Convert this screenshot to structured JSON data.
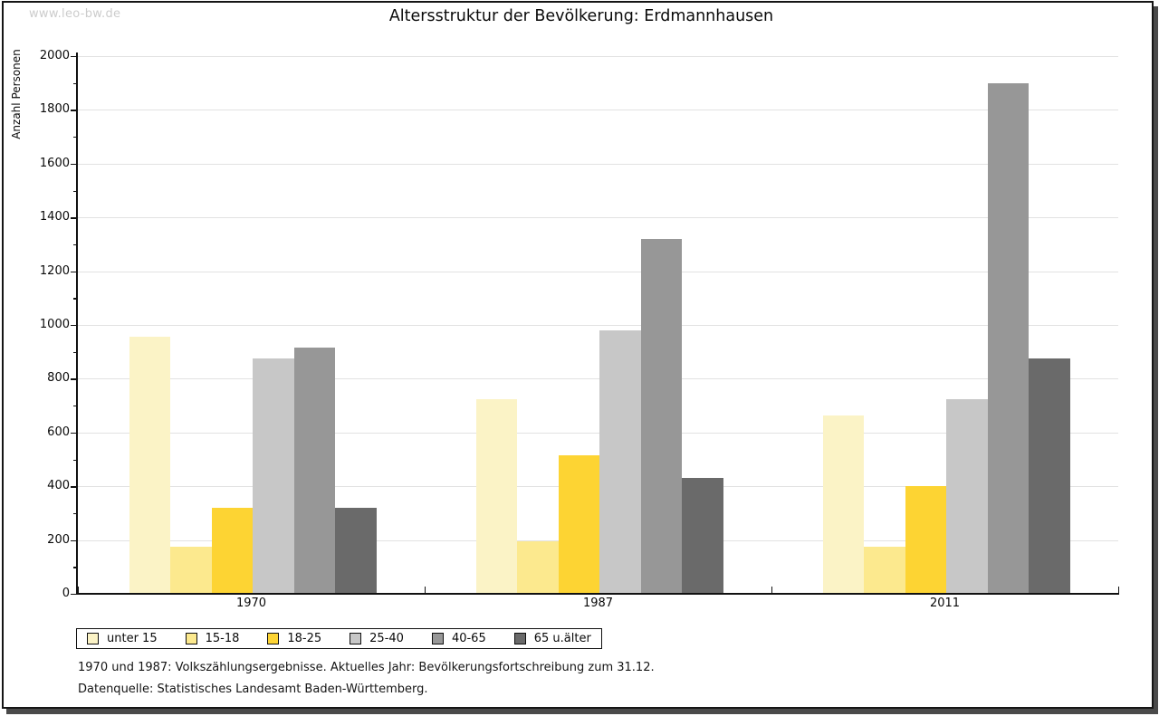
{
  "watermark": "www.leo-bw.de",
  "chart_data": {
    "type": "bar",
    "title": "Altersstruktur der Bevölkerung: Erdmannhausen",
    "ylabel": "Anzahl Personen",
    "xlabel": "",
    "ylim": [
      0,
      2000
    ],
    "ytick_major_step": 200,
    "ytick_minor_step": 100,
    "grid": "horizontal-major",
    "legend_position": "bottom-left",
    "categories": [
      "1970",
      "1987",
      "2011"
    ],
    "series": [
      {
        "name": "unter 15",
        "color": "#FBF3C6",
        "values": [
          955,
          725,
          665
        ]
      },
      {
        "name": "15-18",
        "color": "#FCE98E",
        "values": [
          175,
          195,
          175
        ]
      },
      {
        "name": "18-25",
        "color": "#FDD433",
        "values": [
          320,
          515,
          400
        ]
      },
      {
        "name": "25-40",
        "color": "#C7C7C7",
        "values": [
          875,
          980,
          725
        ]
      },
      {
        "name": "40-65",
        "color": "#979797",
        "values": [
          915,
          1320,
          1900
        ]
      },
      {
        "name": "65 u.älter",
        "color": "#6A6A6A",
        "values": [
          320,
          430,
          875
        ]
      }
    ]
  },
  "footnotes": [
    "1970 und 1987: Volkszählungsergebnisse. Aktuelles Jahr: Bevölkerungsfortschreibung zum 31.12.",
    "Datenquelle: Statistisches Landesamt Baden-Württemberg."
  ]
}
